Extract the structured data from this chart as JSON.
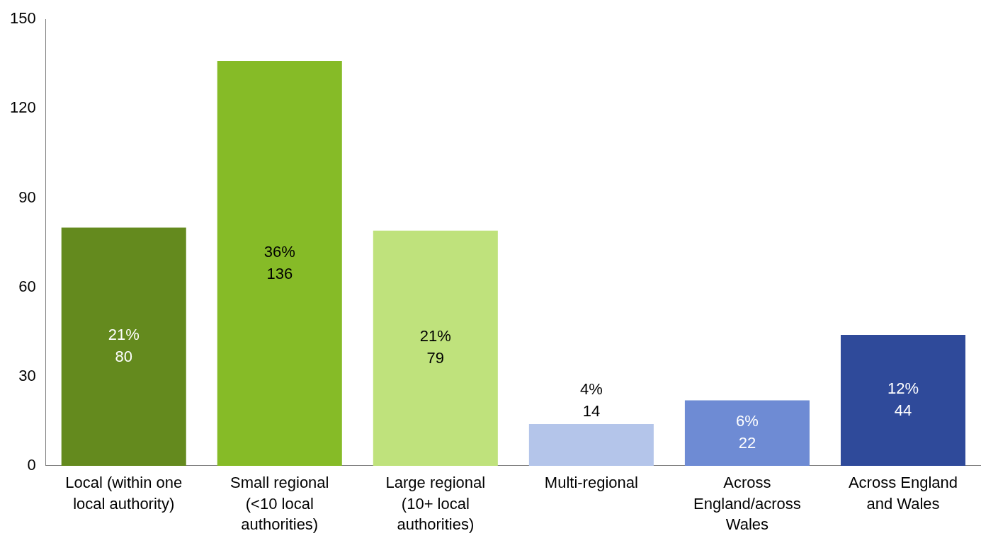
{
  "chart_data": {
    "type": "bar",
    "categories": [
      "Local (within one local authority)",
      "Small regional (<10 local authorities)",
      "Large regional (10+ local authorities)",
      "Multi-regional",
      "Across England/across Wales",
      "Across England and Wales"
    ],
    "values": [
      80,
      136,
      79,
      14,
      22,
      44
    ],
    "colors": [
      "#648a1e",
      "#86bb27",
      "#bfe27c",
      "#b4c5ea",
      "#6e8bd4",
      "#2f4a9a"
    ],
    "value_labels": [
      "21%\n80",
      "36%\n136",
      "21%\n79",
      "4%\n14",
      "6%\n22",
      "12%\n44"
    ],
    "ylim": [
      0,
      150
    ],
    "yticks": [
      0,
      30,
      60,
      90,
      120,
      150
    ],
    "grid": false,
    "legend": false
  }
}
